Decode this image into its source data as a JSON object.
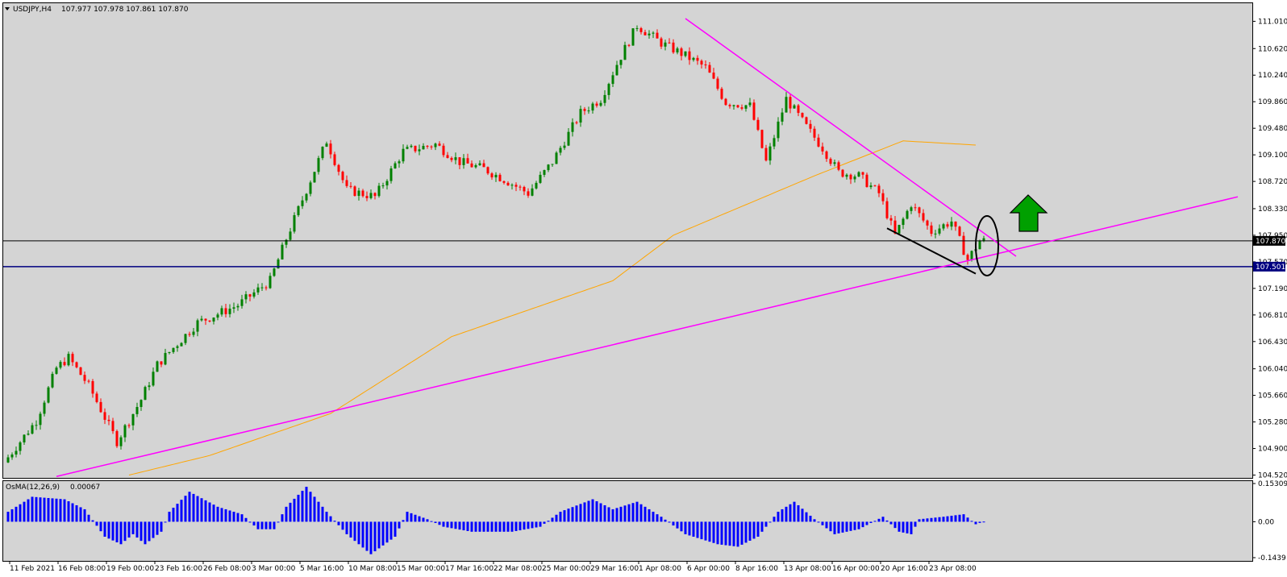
{
  "header": {
    "symbol": "USDJPY,H4",
    "ohlc": "107.977 107.978 107.861 107.870"
  },
  "osma_header": {
    "label": "OsMA(12,26,9)",
    "value": "0.00067"
  },
  "colors": {
    "background": "#d4d4d4",
    "bull_candle": "#008000",
    "bear_candle": "#ff0000",
    "moving_average": "#ffa500",
    "trendline": "#ff00ff",
    "support_line": "#000080",
    "current_price_line": "#000000",
    "osma_bars": "#0000ff",
    "arrow": "#00a000"
  },
  "chart_data": [
    {
      "type": "candlestick",
      "symbol": "USDJPY",
      "timeframe": "H4",
      "y_ticks": [
        "111.010",
        "110.620",
        "110.240",
        "109.860",
        "109.480",
        "109.100",
        "108.720",
        "108.330",
        "107.950",
        "107.570",
        "107.190",
        "106.810",
        "106.430",
        "106.040",
        "105.660",
        "105.280",
        "104.900",
        "104.520"
      ],
      "x_ticks": [
        "11 Feb 2021",
        "16 Feb 08:00",
        "19 Feb 00:00",
        "23 Feb 16:00",
        "26 Feb 08:00",
        "3 Mar 00:00",
        "5 Mar 16:00",
        "10 Mar 08:00",
        "15 Mar 00:00",
        "17 Mar 16:00",
        "22 Mar 08:00",
        "25 Mar 00:00",
        "29 Mar 16:00",
        "1 Apr 08:00",
        "6 Apr 00:00",
        "8 Apr 16:00",
        "13 Apr 08:00",
        "16 Apr 00:00",
        "20 Apr 16:00",
        "23 Apr 08:00"
      ],
      "ylim": [
        104.48,
        111.28
      ],
      "price_path_anchors": [
        {
          "bar": 0,
          "price": 104.7
        },
        {
          "bar": 8,
          "price": 105.3
        },
        {
          "bar": 13,
          "price": 106.05
        },
        {
          "bar": 16,
          "price": 106.2
        },
        {
          "bar": 21,
          "price": 105.8
        },
        {
          "bar": 28,
          "price": 105.0
        },
        {
          "bar": 34,
          "price": 105.6
        },
        {
          "bar": 38,
          "price": 106.1
        },
        {
          "bar": 48,
          "price": 106.7
        },
        {
          "bar": 58,
          "price": 106.95
        },
        {
          "bar": 66,
          "price": 107.3
        },
        {
          "bar": 70,
          "price": 107.9
        },
        {
          "bar": 75,
          "price": 108.6
        },
        {
          "bar": 80,
          "price": 109.3
        },
        {
          "bar": 85,
          "price": 108.6
        },
        {
          "bar": 92,
          "price": 108.5
        },
        {
          "bar": 99,
          "price": 109.15
        },
        {
          "bar": 107,
          "price": 109.25
        },
        {
          "bar": 113,
          "price": 109.0
        },
        {
          "bar": 119,
          "price": 108.9
        },
        {
          "bar": 124,
          "price": 108.75
        },
        {
          "bar": 130,
          "price": 108.55
        },
        {
          "bar": 136,
          "price": 109.0
        },
        {
          "bar": 143,
          "price": 109.7
        },
        {
          "bar": 148,
          "price": 109.9
        },
        {
          "bar": 152,
          "price": 110.4
        },
        {
          "bar": 157,
          "price": 110.95
        },
        {
          "bar": 163,
          "price": 110.7
        },
        {
          "bar": 168,
          "price": 110.55
        },
        {
          "bar": 174,
          "price": 110.35
        },
        {
          "bar": 179,
          "price": 109.85
        },
        {
          "bar": 185,
          "price": 109.8
        },
        {
          "bar": 189,
          "price": 109.0
        },
        {
          "bar": 194,
          "price": 109.9
        },
        {
          "bar": 199,
          "price": 109.5
        },
        {
          "bar": 203,
          "price": 109.2
        },
        {
          "bar": 207,
          "price": 108.85
        },
        {
          "bar": 212,
          "price": 108.8
        },
        {
          "bar": 217,
          "price": 108.55
        },
        {
          "bar": 221,
          "price": 107.95
        },
        {
          "bar": 225,
          "price": 108.4
        },
        {
          "bar": 230,
          "price": 108.0
        },
        {
          "bar": 235,
          "price": 108.15
        },
        {
          "bar": 239,
          "price": 107.6
        },
        {
          "bar": 242,
          "price": 107.87
        }
      ],
      "moving_average_anchors": [
        {
          "bar": 30,
          "price": 104.52
        },
        {
          "bar": 50,
          "price": 104.8
        },
        {
          "bar": 80,
          "price": 105.4
        },
        {
          "bar": 110,
          "price": 106.5
        },
        {
          "bar": 150,
          "price": 107.3
        },
        {
          "bar": 165,
          "price": 107.95
        },
        {
          "bar": 200,
          "price": 108.8
        },
        {
          "bar": 222,
          "price": 109.3
        },
        {
          "bar": 240,
          "price": 109.24
        }
      ],
      "trendlines": [
        {
          "name": "ascending-support",
          "from": {
            "bar": 12,
            "price": 104.5
          },
          "to": {
            "bar": 305,
            "price": 108.5
          }
        },
        {
          "name": "descending-resistance",
          "from": {
            "bar": 168,
            "price": 111.05
          },
          "to": {
            "bar": 250,
            "price": 107.65
          }
        },
        {
          "name": "short-lower-line",
          "from": {
            "bar": 218,
            "price": 108.05
          },
          "to": {
            "bar": 240,
            "price": 107.4
          }
        }
      ],
      "horizontal_levels": [
        {
          "name": "support",
          "price": 107.501,
          "label": "107.501"
        },
        {
          "name": "current-price",
          "price": 107.87,
          "label": "107.870"
        }
      ],
      "annotations": [
        "ellipse around latest candles",
        "green up arrow"
      ]
    },
    {
      "type": "bar",
      "indicator": "OsMA(12,26,9)",
      "last_value": 0.00067,
      "y_ticks": [
        "0.15309",
        "0.00",
        "-0.1439"
      ],
      "ylim": [
        -0.1439,
        0.15309
      ],
      "value_anchors": [
        {
          "bar": 0,
          "value": 0.04
        },
        {
          "bar": 6,
          "value": 0.1
        },
        {
          "bar": 14,
          "value": 0.09
        },
        {
          "bar": 19,
          "value": 0.05
        },
        {
          "bar": 24,
          "value": -0.06
        },
        {
          "bar": 28,
          "value": -0.09
        },
        {
          "bar": 31,
          "value": -0.05
        },
        {
          "bar": 34,
          "value": -0.09
        },
        {
          "bar": 38,
          "value": -0.04
        },
        {
          "bar": 40,
          "value": 0.04
        },
        {
          "bar": 45,
          "value": 0.12
        },
        {
          "bar": 52,
          "value": 0.06
        },
        {
          "bar": 58,
          "value": 0.03
        },
        {
          "bar": 62,
          "value": -0.03
        },
        {
          "bar": 66,
          "value": -0.03
        },
        {
          "bar": 69,
          "value": 0.06
        },
        {
          "bar": 74,
          "value": 0.14
        },
        {
          "bar": 79,
          "value": 0.04
        },
        {
          "bar": 84,
          "value": -0.05
        },
        {
          "bar": 90,
          "value": -0.13
        },
        {
          "bar": 96,
          "value": -0.06
        },
        {
          "bar": 99,
          "value": 0.04
        },
        {
          "bar": 104,
          "value": 0.01
        },
        {
          "bar": 108,
          "value": -0.02
        },
        {
          "bar": 115,
          "value": -0.04
        },
        {
          "bar": 125,
          "value": -0.04
        },
        {
          "bar": 132,
          "value": -0.02
        },
        {
          "bar": 137,
          "value": 0.04
        },
        {
          "bar": 145,
          "value": 0.09
        },
        {
          "bar": 150,
          "value": 0.05
        },
        {
          "bar": 156,
          "value": 0.08
        },
        {
          "bar": 162,
          "value": 0.02
        },
        {
          "bar": 168,
          "value": -0.05
        },
        {
          "bar": 176,
          "value": -0.09
        },
        {
          "bar": 181,
          "value": -0.1
        },
        {
          "bar": 186,
          "value": -0.06
        },
        {
          "bar": 191,
          "value": 0.04
        },
        {
          "bar": 195,
          "value": 0.08
        },
        {
          "bar": 200,
          "value": 0.01
        },
        {
          "bar": 205,
          "value": -0.05
        },
        {
          "bar": 211,
          "value": -0.03
        },
        {
          "bar": 217,
          "value": 0.02
        },
        {
          "bar": 221,
          "value": -0.04
        },
        {
          "bar": 224,
          "value": -0.05
        },
        {
          "bar": 226,
          "value": 0.01
        },
        {
          "bar": 232,
          "value": 0.02
        },
        {
          "bar": 237,
          "value": 0.03
        },
        {
          "bar": 240,
          "value": -0.01
        },
        {
          "bar": 242,
          "value": 0.00067
        }
      ]
    }
  ]
}
